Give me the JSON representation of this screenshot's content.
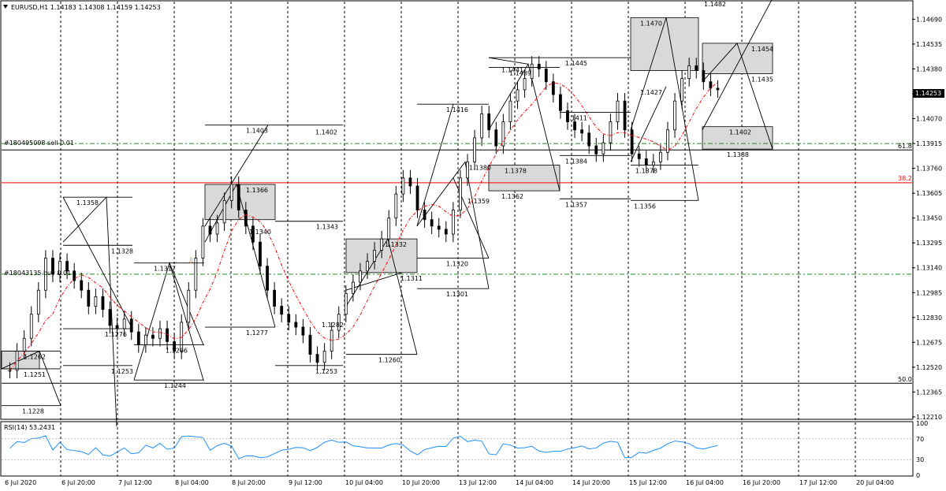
{
  "window": {
    "header": "EURUSD,H1  1.14183 1.14308 1.14159 1.14253"
  },
  "rsi_title": "RSI(14) 53.2431",
  "orders": {
    "sell": "#180495098 sell 0.01",
    "buy": "#18043135 buy 0.01"
  },
  "current_price": "1.14253",
  "chart_data": {
    "type": "candlestick",
    "symbol": "EURUSD",
    "timeframe": "H1",
    "ylim": [
      1.122,
      1.148
    ],
    "price_ticks": [
      "1.14690",
      "1.14535",
      "1.14380",
      "1.14225",
      "1.14070",
      "1.13915",
      "1.13760",
      "1.13605",
      "1.13450",
      "1.13295",
      "1.13140",
      "1.12985",
      "1.12830",
      "1.12675",
      "1.12520",
      "1.12365",
      "1.12210"
    ],
    "time_ticks": [
      "6 Jul 2020",
      "6 Jul 20:00",
      "7 Jul 12:00",
      "8 Jul 04:00",
      "8 Jul 20:00",
      "9 Jul 12:00",
      "10 Jul 04:00",
      "10 Jul 20:00",
      "13 Jul 12:00",
      "14 Jul 04:00",
      "14 Jul 20:00",
      "15 Jul 12:00",
      "16 Jul 04:00",
      "16 Jul 20:00",
      "17 Jul 12:00",
      "20 Jul 04:00"
    ],
    "fib_levels": [
      {
        "label": "61.8",
        "price": 1.13875
      },
      {
        "label": "38.2",
        "price": 1.13675
      },
      {
        "label": "50.0",
        "price": 1.1242
      }
    ],
    "horizontal_lines": [
      {
        "price": 1.13915,
        "color": "#228b22",
        "style": "dashdot"
      },
      {
        "price": 1.131,
        "color": "#228b22",
        "style": "dashdot"
      },
      {
        "price": 1.1367,
        "color": "#ff0000",
        "style": "solid"
      },
      {
        "price": 1.13875,
        "color": "#000000",
        "style": "solid"
      },
      {
        "price": 1.1242,
        "color": "#000000",
        "style": "solid"
      }
    ],
    "annotations": [
      "1.1482",
      "1.1470",
      "1.1454",
      "1.1445",
      "1.1441",
      "1.1439",
      "1.1435",
      "1.1427",
      "1.1416",
      "1.1411",
      "1.1403",
      "1.1402",
      "1.1402",
      "1.1388",
      "1.1384",
      "1.1380",
      "1.1378",
      "1.1378",
      "1.1366",
      "1.1362",
      "1.1359",
      "1.1358",
      "1.1357",
      "1.1356",
      "1.1343",
      "1.1340",
      "1.1332",
      "1.1328",
      "1.1320",
      "1.1317",
      "1.1311",
      "1.1301",
      "1.1282",
      "1.1277",
      "1.1276",
      "1.1266",
      "1.1262",
      "1.1260",
      "1.1253",
      "1.1253",
      "1.1251",
      "1.1244",
      "1.1228"
    ],
    "rsi": {
      "period": 14,
      "value": 53.2431,
      "ylim": [
        0,
        100
      ],
      "ticks": [
        "100",
        "70",
        "30",
        "0"
      ]
    },
    "grid": true
  }
}
